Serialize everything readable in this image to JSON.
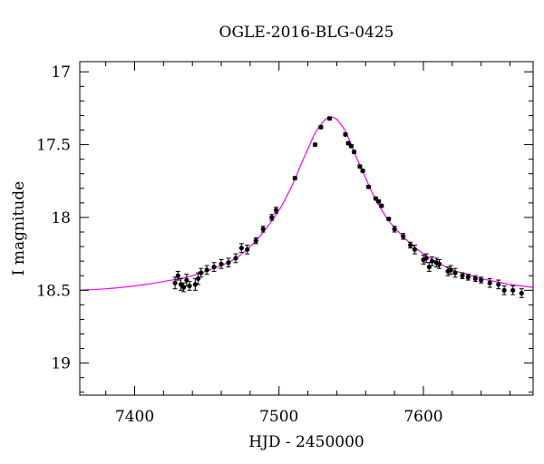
{
  "chart_data": {
    "type": "scatter",
    "title": "OGLE-2016-BLG-0425",
    "xlabel": "HJD - 2450000",
    "ylabel": "I magnitude",
    "xlim": [
      7362,
      7676
    ],
    "ylim": [
      19.22,
      16.93
    ],
    "y_inverted": true,
    "xticks": [
      7400,
      7500,
      7600
    ],
    "xtick_labels": [
      "7400",
      "7500",
      "7600"
    ],
    "yticks": [
      17,
      17.5,
      18,
      18.5,
      19
    ],
    "ytick_labels": [
      "17",
      "17.5",
      "18",
      "18.5",
      "19"
    ],
    "grid": false,
    "legend": "none",
    "series": [
      {
        "kind": "points-with-errorbars",
        "color": "#000000",
        "x": [
          7428,
          7430,
          7432,
          7434,
          7436,
          7438,
          7442,
          7444,
          7446,
          7450,
          7455,
          7460,
          7465,
          7470,
          7474,
          7478,
          7484,
          7489,
          7495,
          7498,
          7511,
          7525,
          7529,
          7535,
          7546,
          7548,
          7550,
          7552,
          7556,
          7558,
          7562,
          7567,
          7569,
          7571,
          7576,
          7580,
          7586,
          7591,
          7594,
          7600,
          7602,
          7604,
          7606,
          7609,
          7611,
          7617,
          7619,
          7622,
          7627,
          7631,
          7636,
          7640,
          7646,
          7652,
          7656,
          7662,
          7668
        ],
        "y": [
          18.45,
          18.4,
          18.46,
          18.48,
          18.43,
          18.47,
          18.46,
          18.42,
          18.38,
          18.36,
          18.34,
          18.32,
          18.31,
          18.28,
          18.21,
          18.22,
          18.16,
          18.08,
          18.0,
          17.95,
          17.73,
          17.5,
          17.38,
          17.32,
          17.43,
          17.49,
          17.51,
          17.55,
          17.65,
          17.68,
          17.79,
          17.87,
          17.89,
          17.92,
          18.01,
          18.08,
          18.13,
          18.19,
          18.22,
          18.29,
          18.28,
          18.34,
          18.3,
          18.31,
          18.32,
          18.37,
          18.36,
          18.38,
          18.4,
          18.41,
          18.42,
          18.43,
          18.45,
          18.46,
          18.5,
          18.5,
          18.52
        ],
        "yerr": [
          0.04,
          0.03,
          0.04,
          0.03,
          0.04,
          0.03,
          0.04,
          0.04,
          0.03,
          0.03,
          0.03,
          0.03,
          0.03,
          0.03,
          0.03,
          0.03,
          0.02,
          0.02,
          0.02,
          0.02,
          0.01,
          0.01,
          0.01,
          0.01,
          0.01,
          0.01,
          0.01,
          0.01,
          0.01,
          0.01,
          0.01,
          0.01,
          0.01,
          0.01,
          0.01,
          0.02,
          0.02,
          0.02,
          0.03,
          0.03,
          0.03,
          0.03,
          0.03,
          0.03,
          0.03,
          0.03,
          0.03,
          0.03,
          0.02,
          0.02,
          0.02,
          0.02,
          0.03,
          0.03,
          0.03,
          0.03,
          0.03
        ]
      },
      {
        "kind": "model-curve",
        "color": "#ff00ff",
        "x": [
          7362,
          7380,
          7400,
          7420,
          7440,
          7460,
          7470,
          7480,
          7490,
          7500,
          7505,
          7510,
          7515,
          7520,
          7525,
          7530,
          7533,
          7536,
          7539,
          7542,
          7546,
          7550,
          7555,
          7560,
          7565,
          7570,
          7575,
          7580,
          7590,
          7600,
          7610,
          7620,
          7630,
          7640,
          7650,
          7660,
          7676
        ],
        "y": [
          18.5,
          18.49,
          18.47,
          18.44,
          18.4,
          18.33,
          18.28,
          18.2,
          18.09,
          17.95,
          17.86,
          17.76,
          17.64,
          17.53,
          17.42,
          17.35,
          17.32,
          17.31,
          17.32,
          17.35,
          17.41,
          17.5,
          17.62,
          17.73,
          17.84,
          17.93,
          18.01,
          18.07,
          18.17,
          18.25,
          18.31,
          18.36,
          18.39,
          18.42,
          18.44,
          18.46,
          18.48
        ]
      }
    ]
  }
}
